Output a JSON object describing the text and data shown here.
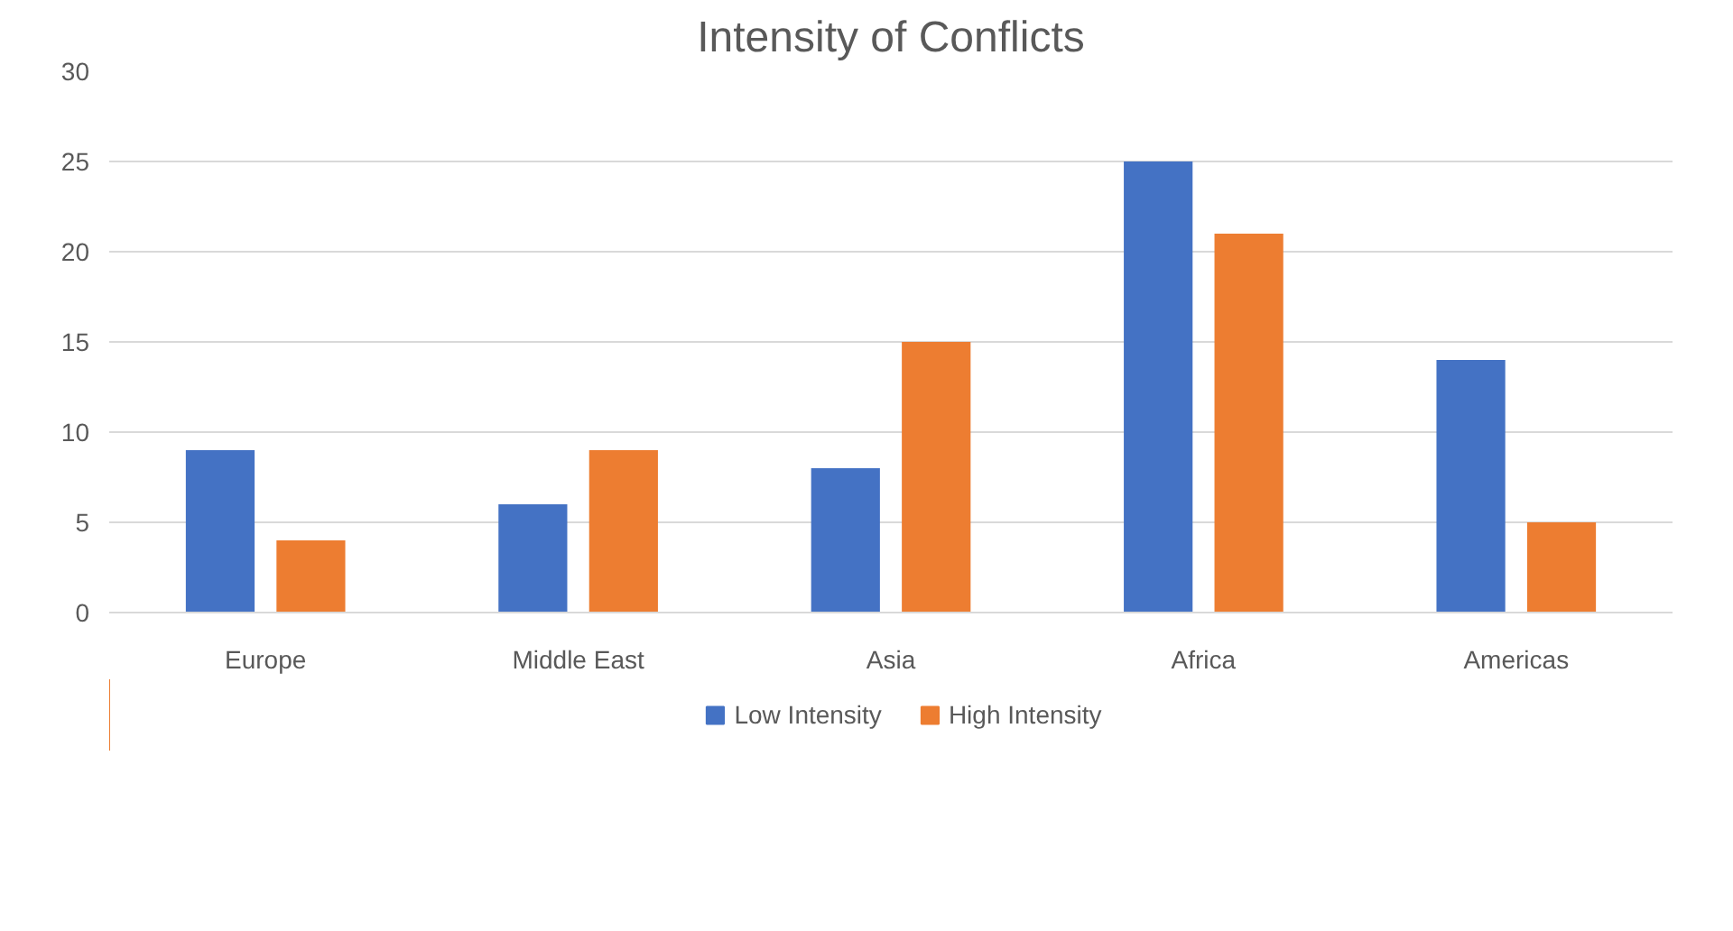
{
  "chart_data": {
    "type": "bar",
    "title": "Intensity of Conflicts",
    "categories": [
      "Europe",
      "Middle East",
      "Asia",
      "Africa",
      "Americas"
    ],
    "series": [
      {
        "name": "Low Intensity",
        "color": "#4472c4",
        "values": [
          9,
          6,
          8,
          25,
          14
        ]
      },
      {
        "name": "High Intensity",
        "color": "#ed7d31",
        "values": [
          4,
          9,
          15,
          21,
          5
        ]
      }
    ],
    "ylim": [
      0,
      30
    ],
    "yticks": [
      0,
      5,
      10,
      15,
      20,
      25,
      30
    ],
    "grid": "y",
    "legend": "bottom"
  }
}
